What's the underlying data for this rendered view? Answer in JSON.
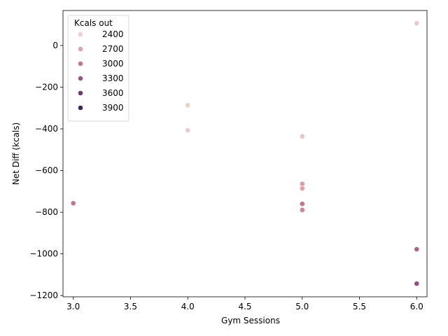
{
  "chart_data": {
    "type": "scatter",
    "title": "",
    "xlabel": "Gym Sessions",
    "ylabel": "Net Diff (kcals)",
    "xlim": [
      2.91,
      6.09
    ],
    "ylim": [
      -1206,
      168
    ],
    "xticks": [
      "3.0",
      "3.5",
      "4.0",
      "4.5",
      "5.0",
      "5.5",
      "6.0"
    ],
    "xtick_values": [
      3.0,
      3.5,
      4.0,
      4.5,
      5.0,
      5.5,
      6.0
    ],
    "yticks": [
      "−1200",
      "−1000",
      "−800",
      "−600",
      "−400",
      "−200",
      "0"
    ],
    "ytick_values": [
      -1200,
      -1000,
      -800,
      -600,
      -400,
      -200,
      0
    ],
    "grid": false,
    "hue_label": "Kcals out",
    "legend": {
      "title": "Kcals out",
      "placement": "upper-left",
      "entries": [
        {
          "label": "2400",
          "color": "#edd1cb"
        },
        {
          "label": "2700",
          "color": "#dea3a7"
        },
        {
          "label": "3000",
          "color": "#c3758f"
        },
        {
          "label": "3300",
          "color": "#9c5386"
        },
        {
          "label": "3600",
          "color": "#6d3a72"
        },
        {
          "label": "3900",
          "color": "#3d2451"
        }
      ]
    },
    "points": [
      {
        "x": 6,
        "y": 107,
        "kcals_out": 2450
      },
      {
        "x": 4,
        "y": -287,
        "kcals_out": 2420
      },
      {
        "x": 4,
        "y": -407,
        "kcals_out": 2430
      },
      {
        "x": 5,
        "y": -436,
        "kcals_out": 2480
      },
      {
        "x": 5,
        "y": -664,
        "kcals_out": 2750
      },
      {
        "x": 5,
        "y": -686,
        "kcals_out": 2700
      },
      {
        "x": 3,
        "y": -757,
        "kcals_out": 3000
      },
      {
        "x": 5,
        "y": -760,
        "kcals_out": 3000
      },
      {
        "x": 5,
        "y": -789,
        "kcals_out": 2900
      },
      {
        "x": 6,
        "y": -978,
        "kcals_out": 3150
      },
      {
        "x": 6,
        "y": -1143,
        "kcals_out": 3350
      }
    ]
  }
}
